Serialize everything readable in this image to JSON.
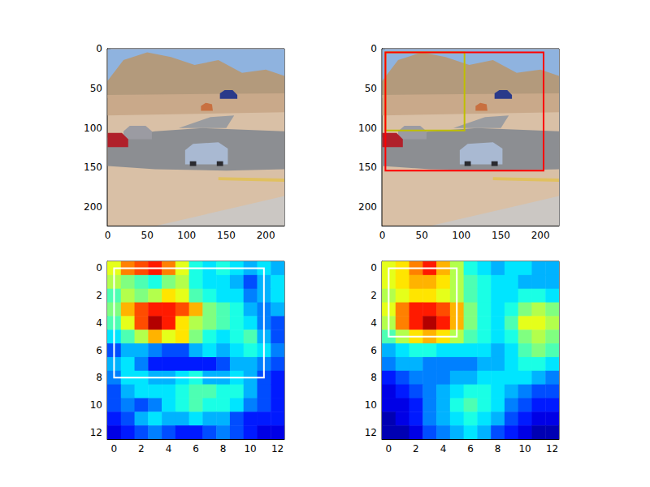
{
  "chart_data": [
    {
      "type": "image",
      "xlim": [
        -0.5,
        223.5
      ],
      "ylim": [
        223.5,
        -0.5
      ],
      "xticks": [
        0,
        50,
        100,
        150,
        200
      ],
      "yticks": [
        0,
        50,
        100,
        150,
        200
      ]
    },
    {
      "type": "image",
      "xlim": [
        -0.5,
        223.5
      ],
      "ylim": [
        223.5,
        -0.5
      ],
      "xticks": [
        0,
        50,
        100,
        150,
        200
      ],
      "yticks": [
        0,
        50,
        100,
        150,
        200
      ],
      "boxes": [
        {
          "x": [
            4,
            104
          ],
          "y": [
            4,
            103
          ],
          "color": "#bfbf00"
        },
        {
          "x": [
            4,
            204
          ],
          "y": [
            4,
            154
          ],
          "color": "#ff0000"
        }
      ]
    },
    {
      "type": "heatmap",
      "xlim": [
        -0.5,
        12.5
      ],
      "ylim": [
        12.5,
        -0.5
      ],
      "xticks": [
        0,
        2,
        4,
        6,
        8,
        10,
        12
      ],
      "yticks": [
        0,
        2,
        4,
        6,
        8,
        10,
        12
      ],
      "color_range": [
        0,
        1
      ],
      "cells": [
        [
          0.6,
          0.75,
          0.8,
          0.85,
          0.75,
          0.6,
          0.4,
          0.35,
          0.4,
          0.35,
          0.3,
          0.35,
          0.3
        ],
        [
          0.55,
          0.5,
          0.45,
          0.4,
          0.5,
          0.55,
          0.4,
          0.35,
          0.35,
          0.3,
          0.2,
          0.3,
          0.35
        ],
        [
          0.45,
          0.55,
          0.5,
          0.55,
          0.65,
          0.6,
          0.45,
          0.4,
          0.35,
          0.35,
          0.25,
          0.3,
          0.35
        ],
        [
          0.5,
          0.7,
          0.8,
          0.85,
          0.85,
          0.8,
          0.7,
          0.5,
          0.45,
          0.4,
          0.3,
          0.25,
          0.3
        ],
        [
          0.45,
          0.6,
          0.8,
          0.95,
          0.85,
          0.65,
          0.55,
          0.5,
          0.45,
          0.4,
          0.35,
          0.25,
          0.2
        ],
        [
          0.35,
          0.45,
          0.55,
          0.7,
          0.6,
          0.65,
          0.5,
          0.4,
          0.35,
          0.4,
          0.45,
          0.3,
          0.2
        ],
        [
          0.2,
          0.3,
          0.3,
          0.25,
          0.2,
          0.2,
          0.3,
          0.35,
          0.3,
          0.35,
          0.4,
          0.35,
          0.25
        ],
        [
          0.3,
          0.35,
          0.25,
          0.15,
          0.15,
          0.15,
          0.15,
          0.15,
          0.2,
          0.3,
          0.3,
          0.25,
          0.2
        ],
        [
          0.25,
          0.35,
          0.35,
          0.3,
          0.3,
          0.35,
          0.4,
          0.3,
          0.3,
          0.35,
          0.3,
          0.2,
          0.15
        ],
        [
          0.2,
          0.3,
          0.35,
          0.35,
          0.35,
          0.4,
          0.45,
          0.45,
          0.4,
          0.4,
          0.3,
          0.2,
          0.15
        ],
        [
          0.2,
          0.25,
          0.2,
          0.25,
          0.35,
          0.4,
          0.45,
          0.4,
          0.4,
          0.35,
          0.25,
          0.2,
          0.15
        ],
        [
          0.15,
          0.2,
          0.3,
          0.35,
          0.3,
          0.3,
          0.35,
          0.3,
          0.3,
          0.2,
          0.15,
          0.15,
          0.15
        ],
        [
          0.1,
          0.15,
          0.2,
          0.25,
          0.2,
          0.15,
          0.15,
          0.2,
          0.25,
          0.2,
          0.15,
          0.1,
          0.1
        ]
      ],
      "boxes": [
        {
          "x": [
            0,
            11
          ],
          "y": [
            0,
            8
          ],
          "color": "#ffffff"
        }
      ]
    },
    {
      "type": "heatmap",
      "xlim": [
        -0.5,
        12.5
      ],
      "ylim": [
        12.5,
        -0.5
      ],
      "xticks": [
        0,
        2,
        4,
        6,
        8,
        10,
        12
      ],
      "yticks": [
        0,
        2,
        4,
        6,
        8,
        10,
        12
      ],
      "color_range": [
        0,
        1
      ],
      "cells": [
        [
          0.6,
          0.65,
          0.75,
          0.85,
          0.7,
          0.55,
          0.4,
          0.35,
          0.3,
          0.35,
          0.35,
          0.3,
          0.3
        ],
        [
          0.6,
          0.65,
          0.7,
          0.7,
          0.65,
          0.55,
          0.45,
          0.4,
          0.35,
          0.35,
          0.3,
          0.3,
          0.3
        ],
        [
          0.55,
          0.6,
          0.65,
          0.65,
          0.6,
          0.55,
          0.45,
          0.4,
          0.35,
          0.35,
          0.4,
          0.4,
          0.35
        ],
        [
          0.6,
          0.75,
          0.85,
          0.85,
          0.8,
          0.7,
          0.5,
          0.4,
          0.35,
          0.4,
          0.5,
          0.55,
          0.5
        ],
        [
          0.55,
          0.75,
          0.85,
          0.95,
          0.85,
          0.7,
          0.5,
          0.4,
          0.35,
          0.45,
          0.6,
          0.6,
          0.55
        ],
        [
          0.45,
          0.55,
          0.65,
          0.7,
          0.65,
          0.55,
          0.45,
          0.4,
          0.35,
          0.4,
          0.5,
          0.55,
          0.5
        ],
        [
          0.3,
          0.35,
          0.4,
          0.4,
          0.35,
          0.35,
          0.35,
          0.35,
          0.3,
          0.35,
          0.45,
          0.5,
          0.45
        ],
        [
          0.25,
          0.3,
          0.3,
          0.25,
          0.25,
          0.25,
          0.25,
          0.3,
          0.3,
          0.35,
          0.4,
          0.4,
          0.35
        ],
        [
          0.15,
          0.2,
          0.25,
          0.25,
          0.25,
          0.3,
          0.3,
          0.35,
          0.35,
          0.35,
          0.35,
          0.3,
          0.25
        ],
        [
          0.1,
          0.15,
          0.2,
          0.25,
          0.3,
          0.35,
          0.4,
          0.4,
          0.35,
          0.3,
          0.25,
          0.2,
          0.2
        ],
        [
          0.1,
          0.1,
          0.15,
          0.25,
          0.3,
          0.4,
          0.45,
          0.4,
          0.35,
          0.25,
          0.2,
          0.15,
          0.15
        ],
        [
          0.05,
          0.1,
          0.15,
          0.25,
          0.3,
          0.35,
          0.4,
          0.35,
          0.3,
          0.2,
          0.15,
          0.1,
          0.1
        ],
        [
          0.05,
          0.05,
          0.1,
          0.2,
          0.25,
          0.3,
          0.35,
          0.3,
          0.2,
          0.15,
          0.1,
          0.05,
          0.05
        ]
      ],
      "boxes": [
        {
          "x": [
            0,
            5
          ],
          "y": [
            0,
            5
          ],
          "color": "#ffffff"
        }
      ]
    }
  ]
}
